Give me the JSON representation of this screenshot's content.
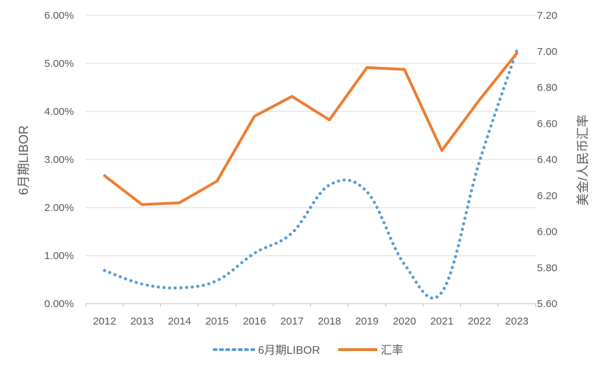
{
  "chart_data": {
    "type": "line",
    "categories": [
      "2012",
      "2013",
      "2014",
      "2015",
      "2016",
      "2017",
      "2018",
      "2019",
      "2020",
      "2021",
      "2022",
      "2023"
    ],
    "series": [
      {
        "name": "6月期LIBOR",
        "axis": "left",
        "style": "dotted",
        "color": "#5B9BD5",
        "values": [
          0.0069,
          0.0041,
          0.0033,
          0.0048,
          0.0105,
          0.0147,
          0.0247,
          0.0233,
          0.0082,
          0.0024,
          0.0295,
          0.0527
        ]
      },
      {
        "name": "汇率",
        "axis": "right",
        "style": "solid",
        "color": "#ED7D31",
        "values": [
          6.31,
          6.15,
          6.16,
          6.28,
          6.64,
          6.75,
          6.62,
          6.91,
          6.9,
          6.45,
          6.73,
          6.99
        ]
      }
    ],
    "y_left": {
      "label": "6月期LIBOR",
      "range": [
        0,
        0.06
      ],
      "ticks": [
        0,
        0.01,
        0.02,
        0.03,
        0.04,
        0.05,
        0.06
      ],
      "tick_labels": [
        "0.00%",
        "1.00%",
        "2.00%",
        "3.00%",
        "4.00%",
        "5.00%",
        "6.00%"
      ]
    },
    "y_right": {
      "label": "美金/人民币汇率",
      "range": [
        5.6,
        7.2
      ],
      "ticks": [
        5.6,
        5.8,
        6.0,
        6.2,
        6.4,
        6.6,
        6.8,
        7.0,
        7.2
      ],
      "tick_labels": [
        "5.60",
        "5.80",
        "6.00",
        "6.20",
        "6.40",
        "6.60",
        "6.80",
        "7.00",
        "7.20"
      ]
    },
    "grid": "horizontal",
    "legend": "bottom"
  }
}
